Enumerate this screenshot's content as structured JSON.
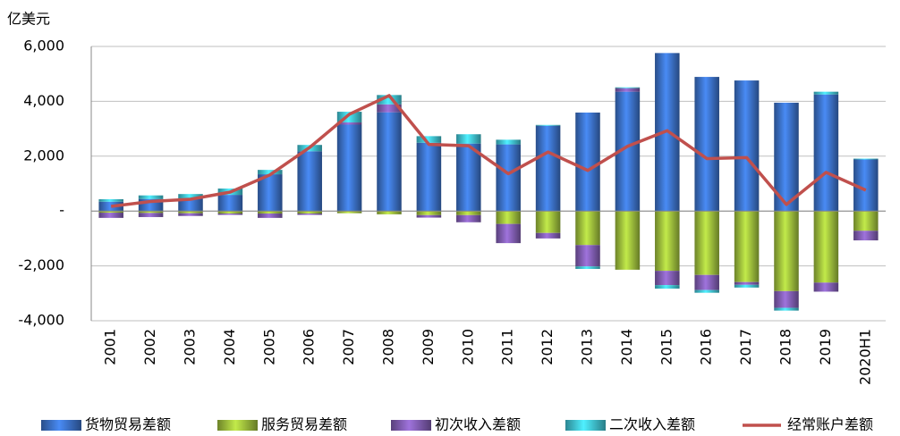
{
  "chart_data": {
    "type": "bar",
    "stacked": true,
    "y_label": "亿美元",
    "categories": [
      "2001",
      "2002",
      "2003",
      "2004",
      "2005",
      "2006",
      "2007",
      "2008",
      "2009",
      "2010",
      "2011",
      "2012",
      "2013",
      "2014",
      "2015",
      "2016",
      "2017",
      "2018",
      "2019",
      "2020H1"
    ],
    "ylim": [
      -4000,
      6000
    ],
    "yticks": [
      {
        "value": -4000,
        "label": "-4,000"
      },
      {
        "value": -2000,
        "label": "-2,000"
      },
      {
        "value": 0,
        "label": "-"
      },
      {
        "value": 2000,
        "label": "2,000"
      },
      {
        "value": 4000,
        "label": "4,000"
      },
      {
        "value": 6000,
        "label": "6,000"
      }
    ],
    "grid": true,
    "legend": "bottom",
    "series": [
      {
        "name": "货物贸易差额",
        "type": "bar",
        "color": "#3a6fc4",
        "values": [
          340,
          440,
          450,
          590,
          1340,
          2180,
          3150,
          3600,
          2490,
          2460,
          2430,
          3110,
          3590,
          4350,
          5760,
          4890,
          4760,
          3950,
          4250,
          1880
        ]
      },
      {
        "name": "服务贸易差额",
        "type": "bar",
        "color": "#9bbb3b",
        "values": [
          -60,
          -70,
          -80,
          -90,
          -90,
          -90,
          -80,
          -120,
          -150,
          -150,
          -470,
          -800,
          -1240,
          -2140,
          -2180,
          -2330,
          -2590,
          -2920,
          -2610,
          -720
        ]
      },
      {
        "name": "初次收入差额",
        "type": "bar",
        "color": "#7f5cb0",
        "values": [
          -190,
          -150,
          -100,
          -50,
          -160,
          -50,
          80,
          290,
          -90,
          -260,
          -700,
          -200,
          -780,
          130,
          -520,
          -550,
          -100,
          -610,
          -330,
          -350
        ]
      },
      {
        "name": "二次收入差额",
        "type": "bar",
        "color": "#3fc0d0",
        "values": [
          90,
          130,
          170,
          230,
          160,
          230,
          390,
          340,
          240,
          340,
          170,
          30,
          -90,
          30,
          -130,
          -100,
          -100,
          -100,
          100,
          30
        ]
      },
      {
        "name": "经常账户差额",
        "type": "line",
        "color": "#c0504d",
        "values": [
          170,
          350,
          430,
          690,
          1320,
          2320,
          3530,
          4210,
          2430,
          2380,
          1360,
          2150,
          1480,
          2360,
          2930,
          1910,
          1950,
          240,
          1410,
          760
        ]
      }
    ]
  }
}
